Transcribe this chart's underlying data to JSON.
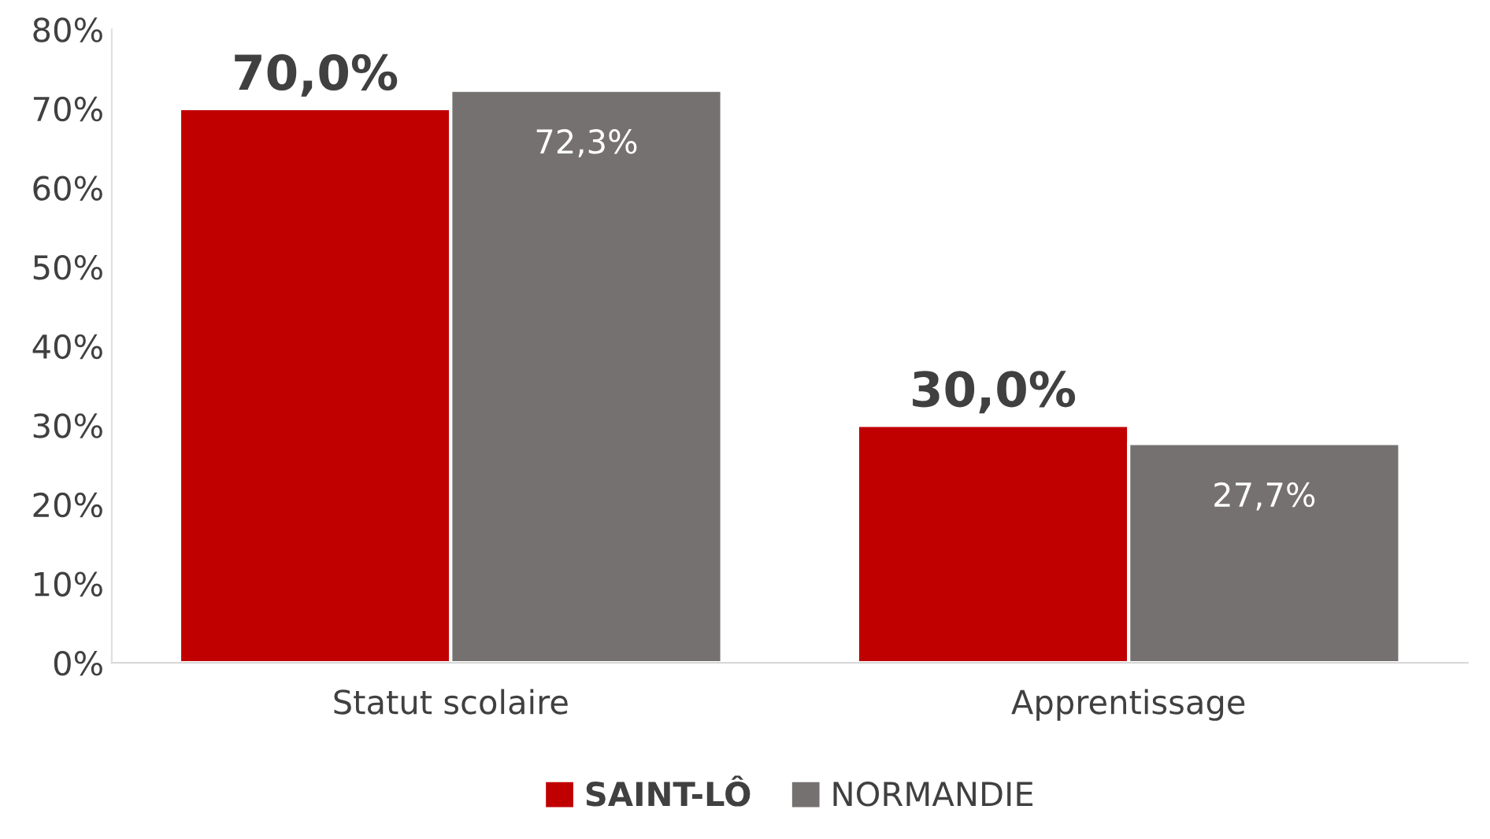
{
  "chart_data": {
    "type": "bar",
    "categories": [
      "Statut scolaire",
      "Apprentissage"
    ],
    "series": [
      {
        "name": "SAINT-LÔ",
        "color": "#c00000",
        "values": [
          70.0,
          30.0
        ],
        "value_labels": [
          "70,0%",
          "30,0%"
        ]
      },
      {
        "name": "NORMANDIE",
        "color": "#767171",
        "values": [
          72.3,
          27.7
        ],
        "value_labels": [
          "72,3%",
          "27,7%"
        ]
      }
    ],
    "ylim": [
      0,
      80
    ],
    "yticks": [
      {
        "value": 0,
        "label": "0%"
      },
      {
        "value": 10,
        "label": "10%"
      },
      {
        "value": 20,
        "label": "20%"
      },
      {
        "value": 30,
        "label": "30%"
      },
      {
        "value": 40,
        "label": "40%"
      },
      {
        "value": 50,
        "label": "50%"
      },
      {
        "value": 60,
        "label": "60%"
      },
      {
        "value": 70,
        "label": "70%"
      },
      {
        "value": 80,
        "label": "80%"
      }
    ],
    "grid": false,
    "legend": "bottom"
  }
}
